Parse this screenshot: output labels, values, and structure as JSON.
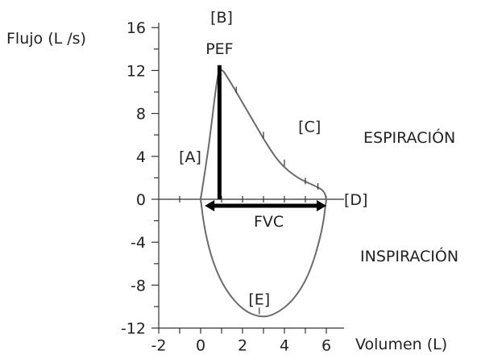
{
  "chart_data": {
    "type": "line",
    "title": "",
    "ylabel": "Flujo (L /s)",
    "xlabel": "Volumen (L)",
    "xlim": [
      -2,
      7
    ],
    "ylim": [
      -12,
      16
    ],
    "x_ticks": [
      "-2",
      "0",
      "2",
      "4",
      "6"
    ],
    "y_ticks": [
      "16",
      "12",
      "8",
      "4",
      "0",
      "-4",
      "-8",
      "-12"
    ],
    "grid": false,
    "legend": "none",
    "series": [
      {
        "role": "expiration",
        "points": [
          [
            0,
            0
          ],
          [
            0.4,
            5
          ],
          [
            0.7,
            10
          ],
          [
            0.9,
            12.5
          ],
          [
            1.4,
            11
          ],
          [
            2.0,
            9
          ],
          [
            2.6,
            7
          ],
          [
            3.2,
            5
          ],
          [
            3.8,
            3.3
          ],
          [
            4.6,
            2.0
          ],
          [
            5.4,
            1.3
          ],
          [
            5.9,
            0.8
          ],
          [
            6.0,
            0
          ]
        ]
      },
      {
        "role": "inspiration",
        "points": [
          [
            0,
            0
          ],
          [
            0.2,
            -3
          ],
          [
            0.6,
            -6
          ],
          [
            1.2,
            -8.5
          ],
          [
            2.0,
            -10.3
          ],
          [
            2.8,
            -11
          ],
          [
            3.5,
            -10.8
          ],
          [
            4.4,
            -9.5
          ],
          [
            5.2,
            -7
          ],
          [
            5.8,
            -3
          ],
          [
            6.0,
            0
          ]
        ]
      }
    ],
    "markers": {
      "pef": {
        "label": "PEF",
        "x": 0.9,
        "y": 12.5
      },
      "fvc": {
        "label": "FVC",
        "x_start": 0.2,
        "x_end": 6.0,
        "y": -0.6
      }
    },
    "annotations": [
      {
        "text": "[A]",
        "x": -0.5,
        "y": 4
      },
      {
        "text": "[B]",
        "x": 1.0,
        "y": 17
      },
      {
        "text": "[C]",
        "x": 5.2,
        "y": 6.8
      },
      {
        "text": "[D]",
        "x": 7.0,
        "y": 0
      },
      {
        "text": "[E]",
        "x": 2.8,
        "y": -9.3
      }
    ],
    "region_labels": {
      "expiration": "ESPIRACIÓN",
      "inspiration": "INSPIRACIÓN"
    },
    "colors": {
      "loop": "#6b6b6b",
      "bold": "#000000",
      "axis": "#333333"
    }
  }
}
